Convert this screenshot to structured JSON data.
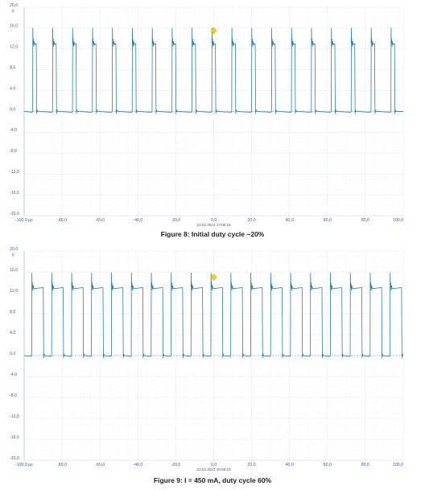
{
  "chart_data": [
    {
      "type": "line",
      "title": "",
      "caption": "Figure 8: Initial duty cycle ~20%",
      "timestamp": "23.02.2023 17:00:16",
      "y_unit": "V",
      "x_unit_label": "-100,0 µs",
      "xlim": [
        -100,
        100
      ],
      "ylim": [
        -20,
        20
      ],
      "x_ticks": [
        -100,
        -80,
        -60,
        -40,
        -20,
        0,
        20,
        40,
        60,
        80,
        100
      ],
      "x_tick_labels": [
        "-100,0 µs",
        "-80,0",
        "-60,0",
        "-40,0",
        "-20,0",
        "0,0",
        "20,0",
        "40,0",
        "60,0",
        "80,0",
        "100,0"
      ],
      "y_ticks": [
        20,
        16,
        12,
        8,
        4,
        0,
        -4,
        -8,
        -12,
        -16,
        -20
      ],
      "y_tick_labels": [
        "20,0",
        "16,0",
        "12,0",
        "8,0",
        "4,0",
        "0,0",
        "-4,0",
        "-8,0",
        "-12,0",
        "-16,0",
        "-20,0"
      ],
      "grid": true,
      "trigger_marker": {
        "x": 0,
        "y": 15.5
      },
      "waveform": {
        "shape": "pulse",
        "period_us": 10.5,
        "duty_cycle": 0.2,
        "high_v": 13.0,
        "overshoot_v": 16.0,
        "low_v": 0.0,
        "first_rise_us": -95.5
      },
      "series": [
        {
          "color": "#1f78b4"
        }
      ]
    },
    {
      "type": "line",
      "title": "",
      "caption": "Figure 9: I = 450 mA, duty cycle 60%",
      "timestamp": "23.02.2023 16:58:23",
      "y_unit": "V",
      "x_unit_label": "-100,0 µs",
      "xlim": [
        -100,
        100
      ],
      "ylim": [
        -20,
        20
      ],
      "x_ticks": [
        -100,
        -80,
        -60,
        -40,
        -20,
        0,
        20,
        40,
        60,
        80,
        100
      ],
      "x_tick_labels": [
        "-100,0 µs",
        "-80,0",
        "-60,0",
        "-40,0",
        "-20,0",
        "0,0",
        "20,0",
        "40,0",
        "60,0",
        "80,0",
        "100,0"
      ],
      "y_ticks": [
        20,
        16,
        12,
        8,
        4,
        0,
        -4,
        -8,
        -12,
        -16,
        -20
      ],
      "y_tick_labels": [
        "20,0",
        "16,0",
        "12,0",
        "8,0",
        "4,0",
        "0,0",
        "-4,0",
        "-8,0",
        "-12,0",
        "-16,0",
        "-20,0"
      ],
      "grid": true,
      "trigger_marker": {
        "x": 0,
        "y": 15.0
      },
      "waveform": {
        "shape": "pulse",
        "period_us": 10.5,
        "duty_cycle": 0.6,
        "high_v": 13.0,
        "overshoot_v": 15.8,
        "low_v": 0.0,
        "first_rise_us": -96.0
      },
      "series": [
        {
          "color": "#1f78b4"
        }
      ]
    }
  ]
}
